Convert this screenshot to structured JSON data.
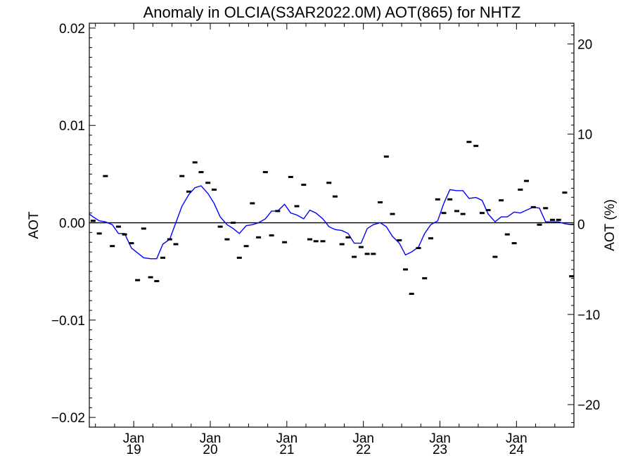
{
  "chart_data": {
    "type": "line",
    "title": "Anomaly in OLCIA(S3AR2022.0M) AOT(865) for NHTZ",
    "ylabel": "AOT",
    "ylabel_right": "AOT (%)",
    "xlabel": "",
    "xlim": [
      2018.42,
      2024.75
    ],
    "ylim": [
      -0.021,
      0.0205
    ],
    "ylim_right": [
      -22.5,
      22.3
    ],
    "yticks": [
      {
        "value": 0.02,
        "label": "0.02"
      },
      {
        "value": 0.01,
        "label": "0.01"
      },
      {
        "value": 0.0,
        "label": "0.00"
      },
      {
        "value": -0.01,
        "label": "−0.01"
      },
      {
        "value": -0.02,
        "label": "−0.02"
      }
    ],
    "yticks_right": [
      {
        "value": 20,
        "label": "20"
      },
      {
        "value": 10,
        "label": "10"
      },
      {
        "value": 0,
        "label": "0"
      },
      {
        "value": -10,
        "label": "−10"
      },
      {
        "value": -20,
        "label": "−20"
      }
    ],
    "xticks": [
      {
        "value": 2019.0,
        "month": "Jan",
        "year": "19"
      },
      {
        "value": 2020.0,
        "month": "Jan",
        "year": "20"
      },
      {
        "value": 2021.0,
        "month": "Jan",
        "year": "21"
      },
      {
        "value": 2022.0,
        "month": "Jan",
        "year": "22"
      },
      {
        "value": 2023.0,
        "month": "Jan",
        "year": "23"
      },
      {
        "value": 2024.0,
        "month": "Jan",
        "year": "24"
      }
    ],
    "zero_line": 0.0,
    "colors": {
      "monthly": "#000000",
      "smoothed": "#0000ff",
      "zero_line": "#000000"
    },
    "series": [
      {
        "kind": "markers",
        "x": [
          2018.47,
          2018.55,
          2018.63,
          2018.72,
          2018.8,
          2018.88,
          2018.97,
          2019.05,
          2019.13,
          2019.22,
          2019.3,
          2019.38,
          2019.47,
          2019.55,
          2019.63,
          2019.72,
          2019.8,
          2019.88,
          2019.97,
          2020.05,
          2020.13,
          2020.22,
          2020.3,
          2020.38,
          2020.47,
          2020.55,
          2020.63,
          2020.72,
          2020.8,
          2020.88,
          2020.97,
          2021.05,
          2021.13,
          2021.22,
          2021.3,
          2021.38,
          2021.47,
          2021.55,
          2021.63,
          2021.72,
          2021.8,
          2021.88,
          2021.97,
          2022.05,
          2022.13,
          2022.22,
          2022.3,
          2022.38,
          2022.47,
          2022.55,
          2022.63,
          2022.72,
          2022.8,
          2022.88,
          2022.97,
          2023.05,
          2023.13,
          2023.22,
          2023.3,
          2023.38,
          2023.47,
          2023.55,
          2023.63,
          2023.72,
          2023.8,
          2023.88,
          2023.97,
          2024.05,
          2024.13,
          2024.22,
          2024.3,
          2024.38,
          2024.47,
          2024.55,
          2024.63,
          2024.72
        ],
        "values": [
          0.0002,
          -0.0011,
          0.0048,
          -0.0024,
          -0.0004,
          -0.0012,
          -0.0021,
          -0.0059,
          -0.0006,
          -0.0056,
          -0.006,
          -0.0036,
          -0.0017,
          -0.0022,
          0.0048,
          0.0032,
          0.0062,
          0.0052,
          0.0041,
          0.0034,
          -0.0004,
          -0.0017,
          0.0,
          -0.0036,
          -0.0024,
          0.002,
          -0.0015,
          0.0052,
          -0.0013,
          0.0012,
          -0.002,
          0.0047,
          0.0017,
          0.0039,
          -0.0017,
          -0.0019,
          -0.0019,
          0.0041,
          0.0027,
          -0.0022,
          -0.0015,
          -0.0035,
          -0.0025,
          -0.0032,
          -0.0032,
          0.0021,
          0.0068,
          0.0009,
          -0.0018,
          -0.0048,
          -0.0073,
          -0.0026,
          -0.0057,
          -0.0016,
          0.0024,
          0.001,
          0.0024,
          0.0012,
          0.0009,
          0.0083,
          0.0079,
          0.001,
          0.0013,
          -0.0035,
          0.0023,
          -0.0012,
          -0.0021,
          0.0034,
          0.0043,
          0.0016,
          -0.0002,
          0.0015,
          0.0003,
          0.0003,
          0.0031,
          -0.0055
        ]
      },
      {
        "kind": "line",
        "x": [
          2018.42,
          2018.47,
          2018.55,
          2018.63,
          2018.72,
          2018.8,
          2018.88,
          2018.97,
          2019.05,
          2019.13,
          2019.22,
          2019.3,
          2019.38,
          2019.47,
          2019.55,
          2019.63,
          2019.72,
          2019.8,
          2019.88,
          2019.97,
          2020.05,
          2020.13,
          2020.22,
          2020.3,
          2020.38,
          2020.47,
          2020.55,
          2020.63,
          2020.72,
          2020.8,
          2020.88,
          2020.97,
          2021.05,
          2021.13,
          2021.22,
          2021.3,
          2021.38,
          2021.47,
          2021.55,
          2021.63,
          2021.72,
          2021.8,
          2021.88,
          2021.97,
          2022.05,
          2022.13,
          2022.22,
          2022.3,
          2022.38,
          2022.47,
          2022.55,
          2022.63,
          2022.72,
          2022.8,
          2022.88,
          2022.97,
          2023.05,
          2023.13,
          2023.22,
          2023.3,
          2023.38,
          2023.47,
          2023.55,
          2023.63,
          2023.72,
          2023.8,
          2023.88,
          2023.97,
          2024.05,
          2024.13,
          2024.22,
          2024.3,
          2024.38,
          2024.47,
          2024.55,
          2024.63,
          2024.72,
          2024.75
        ],
        "values": [
          0.0009,
          0.0006,
          0.0002,
          0.0001,
          -0.0002,
          -0.0011,
          -0.0011,
          -0.0026,
          -0.0031,
          -0.0036,
          -0.0037,
          -0.0037,
          -0.0022,
          -0.0017,
          0.0,
          0.0017,
          0.0029,
          0.0036,
          0.0038,
          0.003,
          0.002,
          0.0006,
          -0.0002,
          -0.0006,
          -0.0011,
          -0.0003,
          -0.0002,
          0.0,
          0.0004,
          0.0012,
          0.0012,
          0.0019,
          0.001,
          0.0008,
          0.0004,
          0.0013,
          0.001,
          0.0004,
          -0.0004,
          -0.0007,
          -0.0008,
          -0.0011,
          -0.0021,
          -0.0021,
          -0.0006,
          -0.0002,
          -0.0,
          -0.0004,
          -0.0014,
          -0.0021,
          -0.0033,
          -0.003,
          -0.0025,
          -0.0011,
          -0.0002,
          0.0002,
          0.002,
          0.0034,
          0.0033,
          0.0033,
          0.0025,
          0.0026,
          0.0023,
          0.0009,
          0.0001,
          0.0006,
          0.0006,
          0.0011,
          0.001,
          0.0013,
          0.0016,
          0.0015,
          0.0001,
          0.0001,
          0.0001,
          -0.0001,
          -0.0002,
          -0.0002
        ]
      }
    ]
  }
}
